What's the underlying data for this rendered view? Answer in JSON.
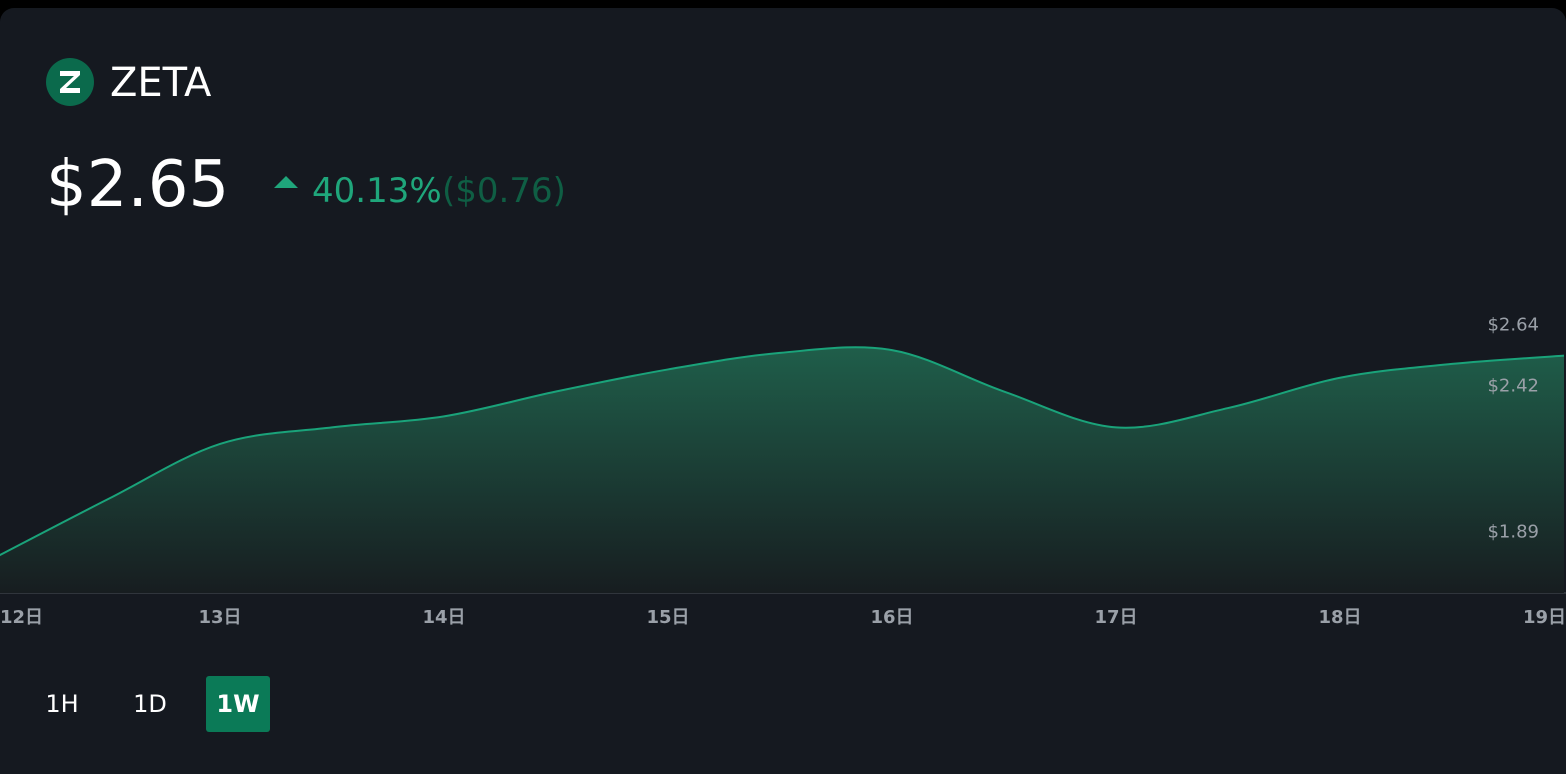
{
  "header": {
    "symbol": "ZETA",
    "price": "$2.65",
    "change_pct": "40.13%",
    "change_abs": "($0.76)"
  },
  "chart_data": {
    "type": "area",
    "x": [
      12,
      12.5,
      13,
      13.5,
      14,
      14.5,
      15,
      15.5,
      16,
      16.5,
      17,
      17.5,
      18,
      18.5,
      19
    ],
    "series": [
      {
        "color": "#1aa37a",
        "values": [
          1.83,
          2.04,
          2.24,
          2.3,
          2.34,
          2.43,
          2.51,
          2.57,
          2.58,
          2.43,
          2.3,
          2.37,
          2.48,
          2.53,
          2.56
        ]
      }
    ],
    "xlim": [
      12,
      19
    ],
    "xticks": [
      {
        "value": 12,
        "label": "12日"
      },
      {
        "value": 13,
        "label": "13日"
      },
      {
        "value": 14,
        "label": "14日"
      },
      {
        "value": 15,
        "label": "15日"
      },
      {
        "value": 16,
        "label": "16日"
      },
      {
        "value": 17,
        "label": "17日"
      },
      {
        "value": 18,
        "label": "18日"
      },
      {
        "value": 19,
        "label": "19日"
      }
    ],
    "ylim": [
      1.7,
      2.8
    ],
    "yticks": [
      {
        "value": 1.89,
        "label": "$1.89"
      },
      {
        "value": 2.42,
        "label": "$2.42"
      },
      {
        "value": 2.64,
        "label": "$2.64"
      }
    ]
  },
  "timeframes": [
    "1H",
    "1D",
    "1W"
  ]
}
